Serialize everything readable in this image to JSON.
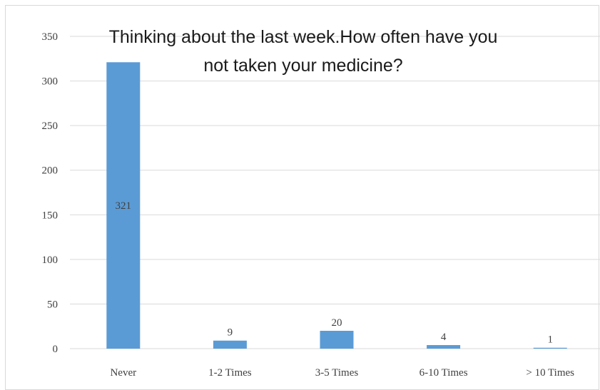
{
  "chart_data": {
    "type": "bar",
    "title_lines": [
      "Thinking about the last week.How often have you",
      "not taken your medicine?"
    ],
    "categories": [
      "Never",
      "1-2 Times",
      "3-5 Times",
      "6-10 Times",
      "> 10 Times"
    ],
    "values": [
      321,
      9,
      20,
      4,
      1
    ],
    "data_labels": [
      "321",
      "9",
      "20",
      "4",
      "1"
    ],
    "ylim": [
      0,
      350
    ],
    "yticks": [
      0,
      50,
      100,
      150,
      200,
      250,
      300,
      350
    ],
    "xlabel": "",
    "ylabel": "",
    "grid": true,
    "legend": "none",
    "colors": {
      "bar": "#5b9bd5",
      "grid": "#d9d9d9",
      "axis": "#d9d9d9",
      "text": "#404040"
    }
  }
}
